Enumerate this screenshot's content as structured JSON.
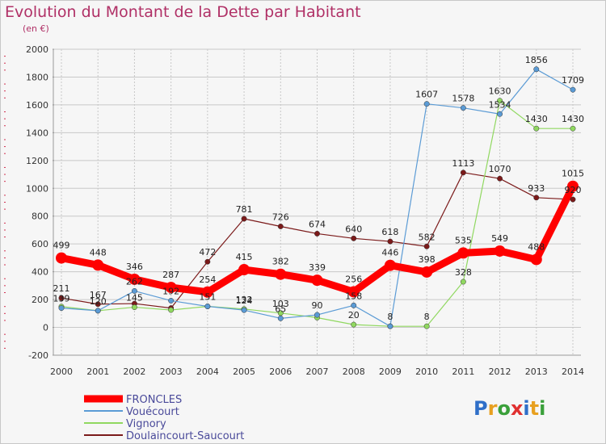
{
  "title": "Evolution du Montant de la Dette par Habitant",
  "unit": "(en €)",
  "logo": {
    "text": "Proxiti",
    "letters": [
      "P",
      "r",
      "o",
      "x",
      "i",
      "t",
      "i"
    ],
    "colors": [
      "#2f6fc8",
      "#e8a020",
      "#3aa03a",
      "#e03030",
      "#2f6fc8",
      "#e8a020",
      "#3aa03a"
    ]
  },
  "colors": {
    "accent": "#b03066",
    "grid": "#c8c8c8",
    "background": "#f6f6f6"
  },
  "chart_data": {
    "type": "line",
    "title": "Evolution du Montant de la Dette par Habitant",
    "ylabel": "(en €)",
    "xlabel": "",
    "ylim": [
      -200,
      2000
    ],
    "yticks": [
      -200,
      0,
      200,
      400,
      600,
      800,
      1000,
      1200,
      1400,
      1600,
      1800,
      2000
    ],
    "grid": true,
    "legend": "bottom-left",
    "x": [
      "2000",
      "2001",
      "2002",
      "2003",
      "2004",
      "2005",
      "2006",
      "2007",
      "2008",
      "2009",
      "2010",
      "2011",
      "2012",
      "2013",
      "2014"
    ],
    "series": [
      {
        "name": "Doulaincourt-Saucourt",
        "color": "#7b1a1a",
        "width": 1.2,
        "values": [
          211,
          167,
          171,
          139,
          472,
          781,
          726,
          674,
          640,
          618,
          582,
          1113,
          1070,
          933,
          920
        ],
        "labels": [
          "211",
          "167",
          "",
          "",
          "472",
          "781",
          "726",
          "674",
          "640",
          "618",
          "582",
          "1113",
          "1070",
          "933",
          "920"
        ]
      },
      {
        "name": "Vignory",
        "color": "#90d860",
        "width": 1.2,
        "values": [
          150,
          120,
          145,
          125,
          151,
          132,
          103,
          70,
          20,
          8,
          8,
          328,
          1630,
          1430,
          1430
        ],
        "labels": [
          "",
          "",
          "145",
          "",
          "",
          "132",
          "103",
          "",
          "20",
          "",
          "8",
          "328",
          "1630",
          "1430",
          "1430"
        ]
      },
      {
        "name": "Vouécourt",
        "color": "#5b9bd5",
        "width": 1.2,
        "values": [
          139,
          120,
          262,
          192,
          151,
          124,
          65,
          90,
          158,
          8,
          1607,
          1578,
          1534,
          1856,
          1709
        ],
        "labels": [
          "139",
          "120",
          "262",
          "192",
          "151",
          "124",
          "65",
          "90",
          "158",
          "8",
          "1607",
          "1578",
          "1534",
          "1856",
          "1709"
        ]
      },
      {
        "name": "FRONCLES",
        "color": "#ff0000",
        "width": 9,
        "values": [
          499,
          448,
          346,
          287,
          254,
          415,
          382,
          339,
          256,
          446,
          398,
          535,
          549,
          488,
          1015
        ],
        "labels": [
          "499",
          "448",
          "346",
          "287",
          "254",
          "415",
          "382",
          "339",
          "256",
          "446",
          "398",
          "535",
          "549",
          "488",
          "1015"
        ]
      }
    ],
    "legend_order": [
      "FRONCLES",
      "Vouécourt",
      "Vignory",
      "Doulaincourt-Saucourt"
    ]
  }
}
